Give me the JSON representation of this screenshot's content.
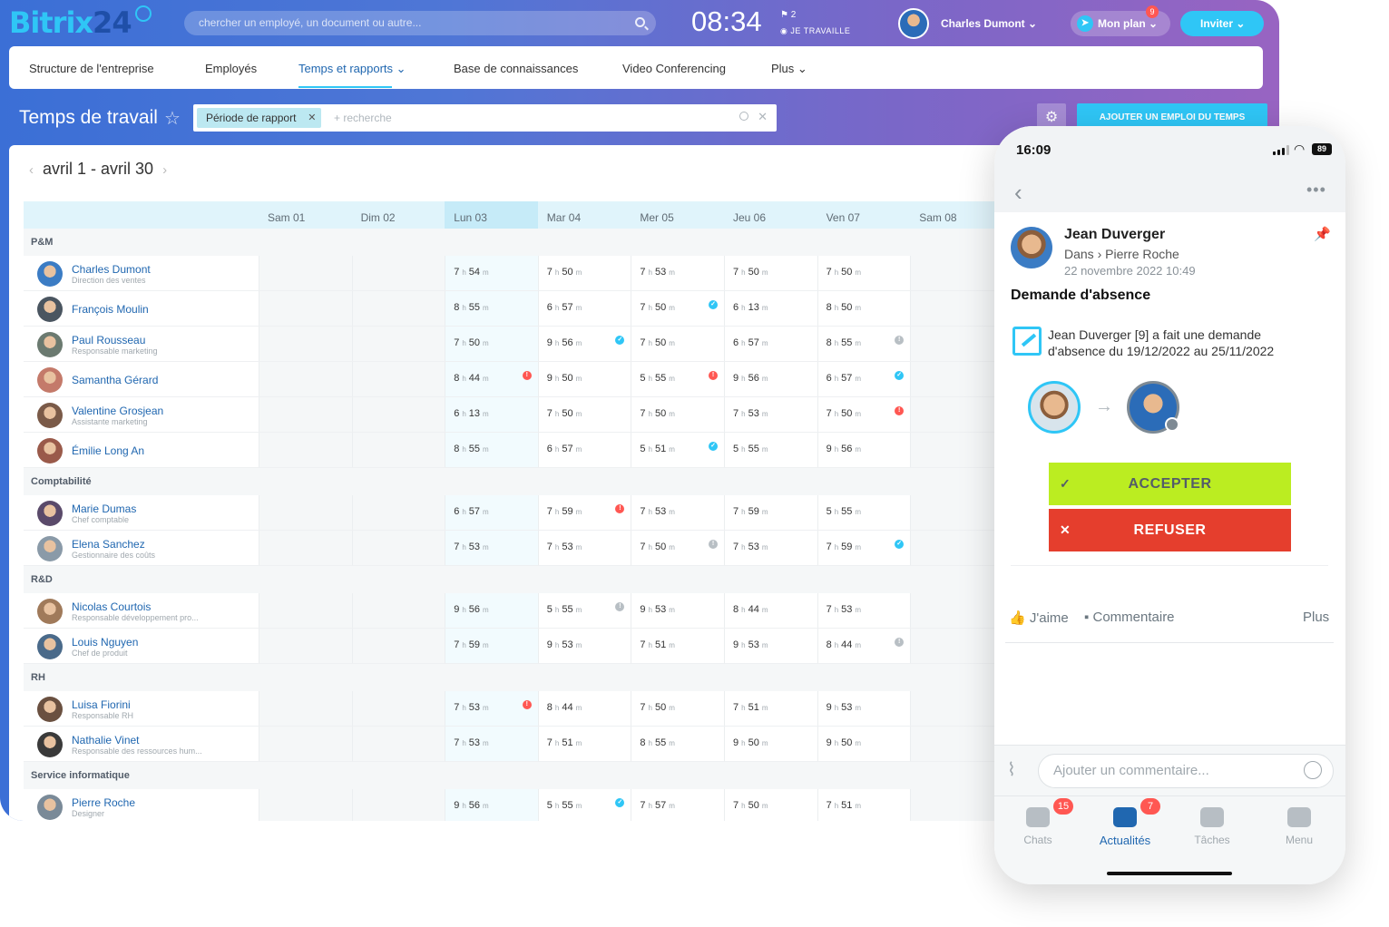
{
  "brand": {
    "logo_text": "Bitrix",
    "logo_number": "24",
    "accent": "#2fc6f6",
    "navy": "#1f4fa8"
  },
  "topbar": {
    "search_placeholder": "chercher un employé, un document ou autre...",
    "time": "08:34",
    "flag_count": "2",
    "work_status": "JE TRAVAILLE",
    "user_name": "Charles Dumont",
    "plan_label": "Mon plan",
    "plan_badge": "9",
    "invite_label": "Inviter"
  },
  "menu": [
    {
      "label": "Structure de l'entreprise",
      "active": false
    },
    {
      "label": "Employés",
      "active": false
    },
    {
      "label": "Temps et rapports",
      "active": true,
      "dropdown": true
    },
    {
      "label": "Base de connaissances",
      "active": false
    },
    {
      "label": "Video Conferencing",
      "active": false
    },
    {
      "label": "Plus",
      "active": false,
      "dropdown": true
    }
  ],
  "page": {
    "title": "Temps de travail",
    "filter_chip": "Période de rapport",
    "filter_placeholder": "+ recherche",
    "add_button": "AJOUTER UN EMPLOI DU TEMPS",
    "period": "avril 1 - avril 30"
  },
  "days": [
    {
      "label": "Sam 01",
      "type": "weekend"
    },
    {
      "label": "Dim 02",
      "type": "weekend"
    },
    {
      "label": "Lun 03",
      "type": "today"
    },
    {
      "label": "Mar 04",
      "type": "work"
    },
    {
      "label": "Mer 05",
      "type": "work"
    },
    {
      "label": "Jeu 06",
      "type": "work"
    },
    {
      "label": "Ven 07",
      "type": "work"
    },
    {
      "label": "Sam 08",
      "type": "weekend"
    }
  ],
  "units": {
    "hours": "h",
    "minutes": "m"
  },
  "sections": [
    {
      "name": "P&M",
      "people": [
        {
          "name": "Charles Dumont",
          "role": "Direction des ventes",
          "color": "#3b7cc4",
          "times": [
            [
              "7",
              "54",
              ""
            ],
            [
              "7",
              "50",
              ""
            ],
            [
              "7",
              "53",
              ""
            ],
            [
              "7",
              "50",
              ""
            ],
            [
              "7",
              "50",
              ""
            ]
          ]
        },
        {
          "name": "François Moulin",
          "role": "",
          "color": "#4a5560",
          "times": [
            [
              "8",
              "55",
              ""
            ],
            [
              "6",
              "57",
              ""
            ],
            [
              "7",
              "50",
              "blue"
            ],
            [
              "6",
              "13",
              ""
            ],
            [
              "8",
              "50",
              ""
            ]
          ]
        },
        {
          "name": "Paul Rousseau",
          "role": "Responsable marketing",
          "color": "#6b7a70",
          "times": [
            [
              "7",
              "50",
              ""
            ],
            [
              "9",
              "56",
              "blue"
            ],
            [
              "7",
              "50",
              ""
            ],
            [
              "6",
              "57",
              ""
            ],
            [
              "8",
              "55",
              "grey"
            ]
          ]
        },
        {
          "name": "Samantha Gérard",
          "role": "",
          "color": "#c47a6a",
          "times": [
            [
              "8",
              "44",
              "red"
            ],
            [
              "9",
              "50",
              ""
            ],
            [
              "5",
              "55",
              "red"
            ],
            [
              "9",
              "56",
              ""
            ],
            [
              "6",
              "57",
              "blue"
            ]
          ]
        },
        {
          "name": "Valentine Grosjean",
          "role": "Assistante marketing",
          "color": "#7a5a48",
          "times": [
            [
              "6",
              "13",
              ""
            ],
            [
              "7",
              "50",
              ""
            ],
            [
              "7",
              "50",
              ""
            ],
            [
              "7",
              "53",
              ""
            ],
            [
              "7",
              "50",
              "red"
            ]
          ]
        },
        {
          "name": "Émilie Long An",
          "role": "",
          "color": "#9a5a4a",
          "times": [
            [
              "8",
              "55",
              ""
            ],
            [
              "6",
              "57",
              ""
            ],
            [
              "5",
              "51",
              "blue"
            ],
            [
              "5",
              "55",
              ""
            ],
            [
              "9",
              "56",
              ""
            ]
          ]
        }
      ]
    },
    {
      "name": "Comptabilité",
      "people": [
        {
          "name": "Marie Dumas",
          "role": "Chef comptable",
          "color": "#5a4a6a",
          "times": [
            [
              "6",
              "57",
              ""
            ],
            [
              "7",
              "59",
              "red"
            ],
            [
              "7",
              "53",
              ""
            ],
            [
              "7",
              "59",
              ""
            ],
            [
              "5",
              "55",
              ""
            ]
          ]
        },
        {
          "name": "Elena Sanchez",
          "role": "Gestionnaire des coûts",
          "color": "#8a9aa8",
          "times": [
            [
              "7",
              "53",
              ""
            ],
            [
              "7",
              "53",
              ""
            ],
            [
              "7",
              "50",
              "grey"
            ],
            [
              "7",
              "53",
              ""
            ],
            [
              "7",
              "59",
              "blue"
            ]
          ]
        }
      ]
    },
    {
      "name": "R&D",
      "people": [
        {
          "name": "Nicolas Courtois",
          "role": "Responsable développement pro...",
          "color": "#a07a5a",
          "times": [
            [
              "9",
              "56",
              ""
            ],
            [
              "5",
              "55",
              "grey"
            ],
            [
              "9",
              "53",
              ""
            ],
            [
              "8",
              "44",
              ""
            ],
            [
              "7",
              "53",
              ""
            ]
          ]
        },
        {
          "name": "Louis Nguyen",
          "role": "Chef de produit",
          "color": "#4a6a8a",
          "times": [
            [
              "7",
              "59",
              ""
            ],
            [
              "9",
              "53",
              ""
            ],
            [
              "7",
              "51",
              ""
            ],
            [
              "9",
              "53",
              ""
            ],
            [
              "8",
              "44",
              "grey"
            ]
          ]
        }
      ]
    },
    {
      "name": "RH",
      "people": [
        {
          "name": "Luisa Fiorini",
          "role": "Responsable RH",
          "color": "#6a5040",
          "times": [
            [
              "7",
              "53",
              "red"
            ],
            [
              "8",
              "44",
              ""
            ],
            [
              "7",
              "50",
              ""
            ],
            [
              "7",
              "51",
              ""
            ],
            [
              "9",
              "53",
              ""
            ]
          ]
        },
        {
          "name": "Nathalie Vinet",
          "role": "Responsable des ressources hum...",
          "color": "#3a3a3a",
          "times": [
            [
              "7",
              "53",
              ""
            ],
            [
              "7",
              "51",
              ""
            ],
            [
              "8",
              "55",
              ""
            ],
            [
              "9",
              "50",
              ""
            ],
            [
              "9",
              "50",
              ""
            ]
          ]
        }
      ]
    },
    {
      "name": "Service informatique",
      "people": [
        {
          "name": "Pierre Roche",
          "role": "Designer",
          "color": "#7a8a98",
          "times": [
            [
              "9",
              "56",
              ""
            ],
            [
              "5",
              "55",
              "blue"
            ],
            [
              "7",
              "57",
              ""
            ],
            [
              "7",
              "50",
              ""
            ],
            [
              "7",
              "51",
              ""
            ]
          ]
        }
      ]
    }
  ],
  "phone": {
    "time": "16:09",
    "battery": "89",
    "author": "Jean Duverger",
    "dest_prefix": "Dans",
    "dest": "Pierre Roche",
    "date": "22 novembre 2022 10:49",
    "subject": "Demande d'absence",
    "message": "Jean Duverger [9] a fait une demande d'absence du 19/12/2022 au 25/11/2022",
    "accept": "ACCEPTER",
    "refuse": "REFUSER",
    "like": "J'aime",
    "comment": "Commentaire",
    "more": "Plus",
    "comment_placeholder": "Ajouter un commentaire...",
    "tabs": [
      {
        "label": "Chats",
        "badge": "15",
        "active": false
      },
      {
        "label": "Actualités",
        "badge": "7",
        "active": true
      },
      {
        "label": "Tâches",
        "badge": "",
        "active": false
      },
      {
        "label": "Menu",
        "badge": "",
        "active": false
      }
    ]
  }
}
